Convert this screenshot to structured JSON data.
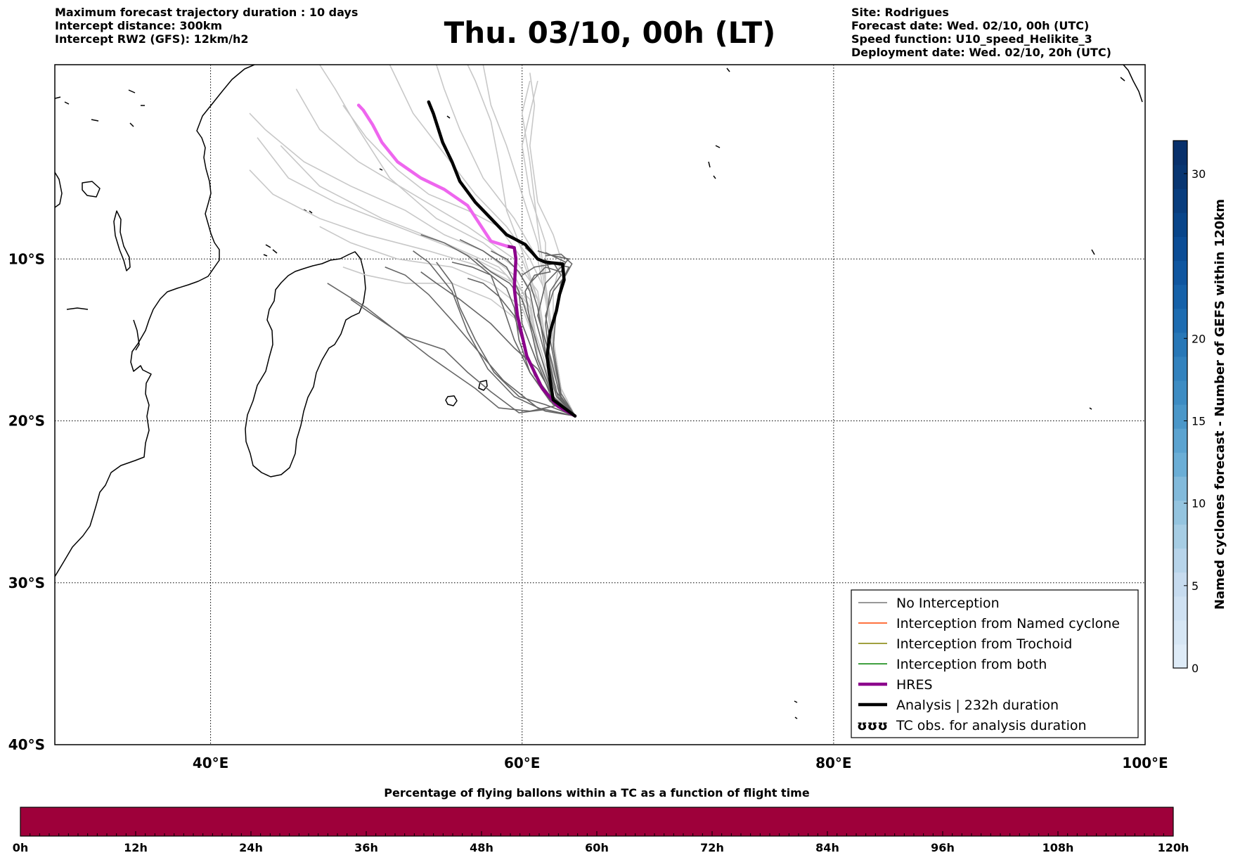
{
  "header": {
    "left_lines": [
      "Maximum forecast trajectory duration : 10 days",
      "Intercept distance: 300km",
      "Intercept RW2 (GFS):  12km/h2"
    ],
    "title": "Thu. 03/10, 00h (LT)",
    "right_lines": [
      "Site: Rodrigues",
      "Forecast date: Wed. 02/10, 00h (UTC)",
      "Speed function: U10_speed_Helikite_3",
      "Deployment date: Wed. 02/10, 20h (UTC)"
    ]
  },
  "map": {
    "lon_range": [
      30,
      100
    ],
    "lat_range": [
      -40,
      2
    ],
    "lon_ticks": [
      {
        "value": 40,
        "label": "40°E"
      },
      {
        "value": 60,
        "label": "60°E"
      },
      {
        "value": 80,
        "label": "80°E"
      },
      {
        "value": 100,
        "label": "100°E"
      }
    ],
    "lat_ticks": [
      {
        "value": -10,
        "label": "10°S"
      },
      {
        "value": -20,
        "label": "20°S"
      },
      {
        "value": -30,
        "label": "30°S"
      },
      {
        "value": -40,
        "label": "40°S"
      }
    ],
    "grid": true,
    "launch_point": {
      "lon": 63.4,
      "lat": -19.7
    },
    "hres_track": [
      [
        63.4,
        -19.7
      ],
      [
        62.3,
        -19.1
      ],
      [
        61.3,
        -18.0
      ],
      [
        60.3,
        -16.0
      ],
      [
        59.7,
        -13.5
      ],
      [
        59.5,
        -11.8
      ],
      [
        59.6,
        -10.0
      ],
      [
        59.5,
        -9.3
      ],
      [
        59.0,
        -9.2
      ],
      [
        58.0,
        -8.9
      ],
      [
        56.5,
        -6.7
      ],
      [
        55.0,
        -5.7
      ],
      [
        53.5,
        -5.0
      ],
      [
        52.0,
        -4.0
      ],
      [
        51.0,
        -2.8
      ],
      [
        50.4,
        -1.7
      ],
      [
        49.8,
        -0.8
      ],
      [
        49.5,
        -0.5
      ]
    ],
    "analysis_track": [
      [
        63.4,
        -19.7
      ],
      [
        62.0,
        -18.7
      ],
      [
        61.8,
        -17.5
      ],
      [
        61.6,
        -16.0
      ],
      [
        61.8,
        -14.5
      ],
      [
        62.2,
        -13.2
      ],
      [
        62.4,
        -12.2
      ],
      [
        62.7,
        -11.3
      ],
      [
        62.6,
        -10.3
      ],
      [
        61.5,
        -10.2
      ],
      [
        61.0,
        -10.0
      ],
      [
        60.2,
        -9.1
      ],
      [
        59.0,
        -8.5
      ],
      [
        58.0,
        -7.5
      ],
      [
        57.0,
        -6.5
      ],
      [
        56.0,
        -5.2
      ],
      [
        55.5,
        -4.0
      ],
      [
        54.9,
        -2.8
      ],
      [
        54.3,
        -1.0
      ],
      [
        54.0,
        -0.3
      ]
    ],
    "hres_color": "#8b008b",
    "hres_upper_color": "#ee66ee",
    "analysis_color": "#000000",
    "ensemble_dark_color": "#666666",
    "ensemble_light_color": "#c8c8c8"
  },
  "legend": {
    "position": "lower-right",
    "items": [
      {
        "label": "No Interception",
        "color": "#777777",
        "style": "thin"
      },
      {
        "label": "Interception from Named cyclone",
        "color": "#ff4500",
        "style": "thin"
      },
      {
        "label": "Interception from Trochoid",
        "color": "#808000",
        "style": "thin"
      },
      {
        "label": "Interception from both",
        "color": "#008000",
        "style": "thin"
      },
      {
        "label": "HRES",
        "color": "#8b008b",
        "style": "thick"
      },
      {
        "label": "Analysis | 232h duration",
        "color": "#000000",
        "style": "thick"
      },
      {
        "label": "TC obs. for analysis duration",
        "color": "#000000",
        "style": "symbol"
      }
    ]
  },
  "colorbar_right": {
    "label": "Named cyclones forecast - Number of GEFS within 120km",
    "min": 0,
    "max": 32,
    "ticks": [
      0,
      5,
      10,
      15,
      20,
      30
    ],
    "tick_labels": [
      "0",
      "5",
      "10",
      "15",
      "20",
      "30"
    ],
    "colors": [
      "#deebf7",
      "#d6e6f4",
      "#cfe1f2",
      "#c6dbef",
      "#b7d4ea",
      "#a6cde4",
      "#94c4df",
      "#82badb",
      "#6baed6",
      "#5ba3d0",
      "#4a97c9",
      "#3d8cc3",
      "#3282be",
      "#2777b7",
      "#1d6cb1",
      "#1561a9",
      "#0f56a0",
      "#0b4d96",
      "#08458a",
      "#083d7e",
      "#083672",
      "#08306b"
    ]
  },
  "colorbar_bottom": {
    "title": "Percentage of flying ballons within a TC as a function of flight time",
    "fill_color": "#9e003a",
    "tick_labels": [
      "0h",
      "12h",
      "24h",
      "36h",
      "48h",
      "60h",
      "72h",
      "84h",
      "96h",
      "108h",
      "120h"
    ]
  }
}
